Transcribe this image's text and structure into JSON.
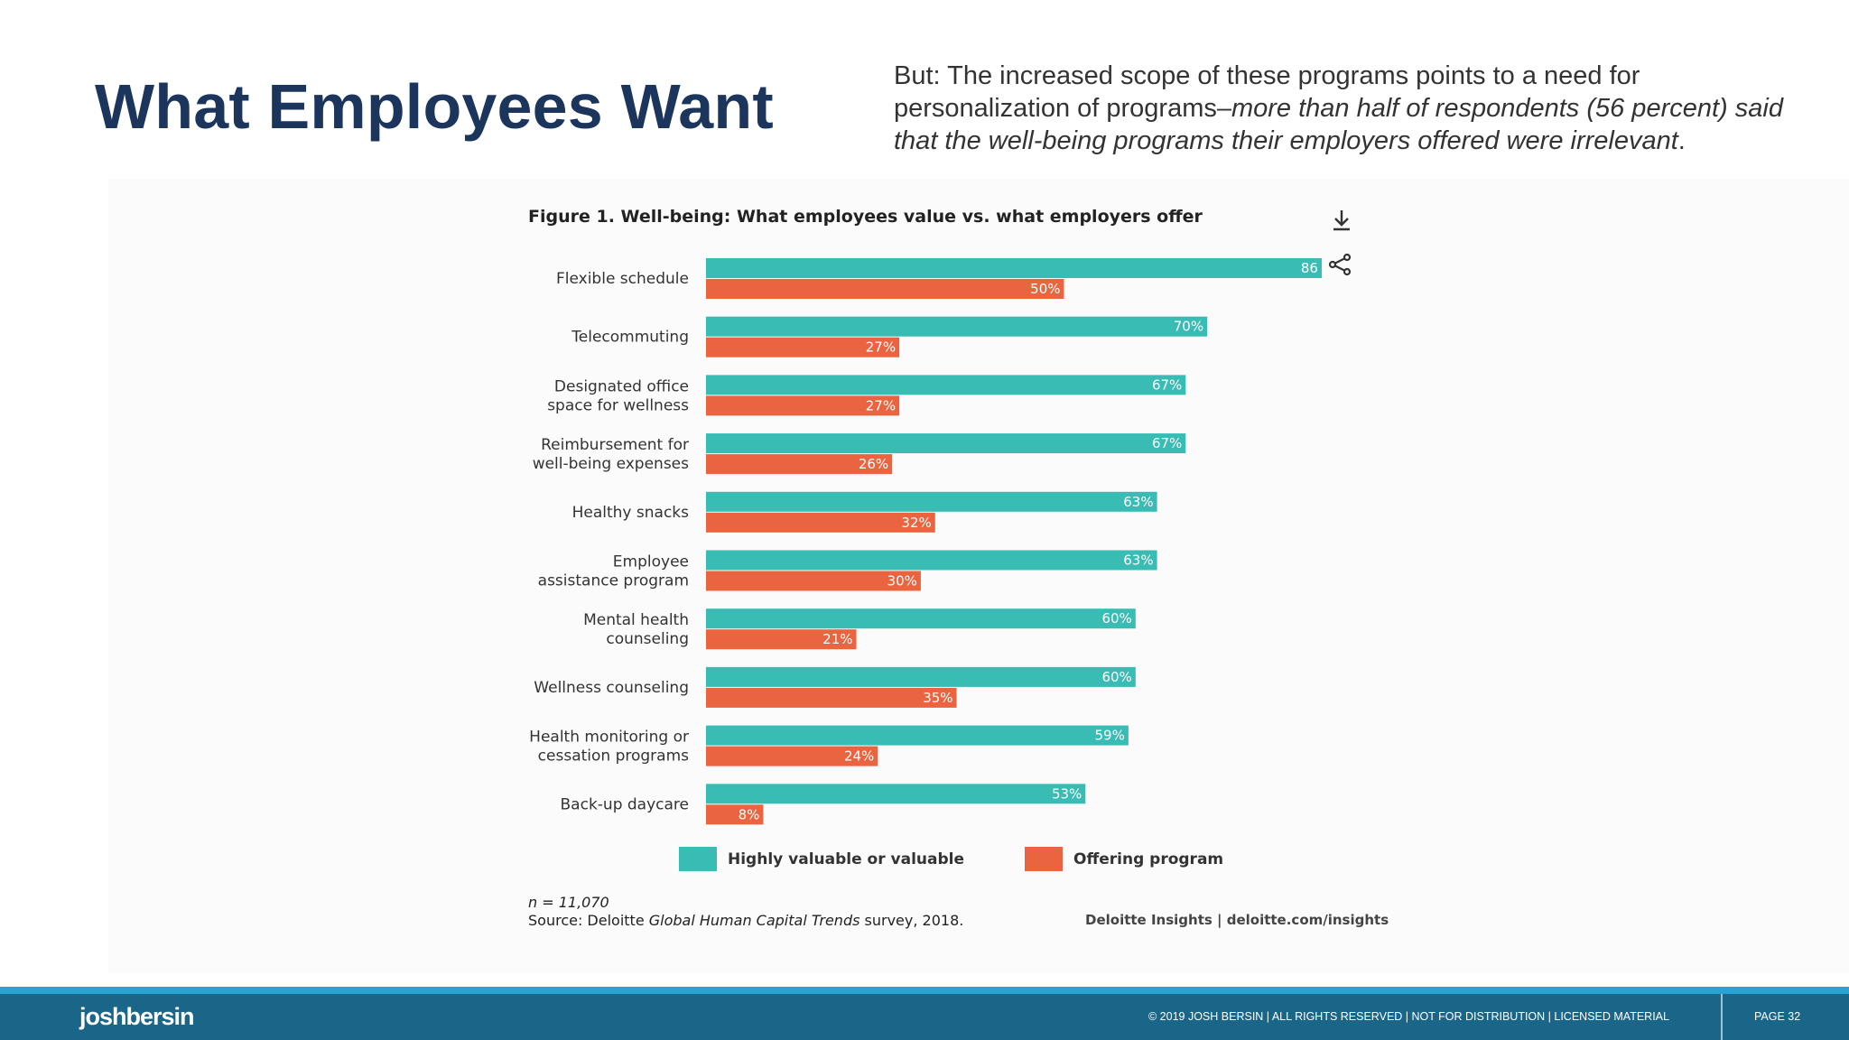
{
  "slide": {
    "title": "What Employees Want",
    "intro_plain": "But:  The increased scope of these programs points to a need for personalization of programs–",
    "intro_italic": "more than half of respondents (56 percent) said that the well-being programs their employers offered were irrelevant",
    "intro_end": "."
  },
  "figure": {
    "title": "Figure 1. Well-being: What employees value vs. what employers offer",
    "download_icon": "download-icon",
    "share_icon": "share-icon",
    "note_n": "n = 11,070",
    "source_prefix": "Source: Deloitte ",
    "source_italic": "Global Human Capital Trends",
    "source_suffix": " survey, 2018.",
    "credit": "Deloitte Insights | deloitte.com/insights"
  },
  "colors": {
    "valued": "#38bcb4",
    "offered": "#e9643f",
    "title_navy": "#1b355d",
    "footer": "#1a6688",
    "footer_stripe": "#29a3d4"
  },
  "chart_data": {
    "type": "bar",
    "orientation": "horizontal",
    "title": "Figure 1. Well-being: What employees value vs. what employers offer",
    "categories": [
      [
        "Flexible schedule"
      ],
      [
        "Telecommuting"
      ],
      [
        "Designated office",
        "space for wellness"
      ],
      [
        "Reimbursement for",
        "well-being expenses"
      ],
      [
        "Healthy snacks"
      ],
      [
        "Employee",
        "assistance program"
      ],
      [
        "Mental health",
        "counseling"
      ],
      [
        "Wellness counseling"
      ],
      [
        "Health monitoring or",
        "cessation programs"
      ],
      [
        "Back-up daycare"
      ]
    ],
    "series": [
      {
        "name": "Highly valuable or valuable",
        "values": [
          86,
          70,
          67,
          67,
          63,
          63,
          60,
          60,
          59,
          53
        ],
        "labels": [
          "86",
          "70%",
          "67%",
          "67%",
          "63%",
          "63%",
          "60%",
          "60%",
          "59%",
          "53%"
        ]
      },
      {
        "name": "Offering program",
        "values": [
          50,
          27,
          27,
          26,
          32,
          30,
          21,
          35,
          24,
          8
        ],
        "labels": [
          "50%",
          "27%",
          "27%",
          "26%",
          "32%",
          "30%",
          "21%",
          "35%",
          "24%",
          "8%"
        ]
      }
    ],
    "xlim": [
      0,
      100
    ],
    "unit": "%",
    "legend_position": "bottom",
    "grid": false
  },
  "footer": {
    "brand": "joshbersin",
    "legal": "© 2019 JOSH BERSIN | ALL RIGHTS RESERVED | NOT FOR DISTRIBUTION | LICENSED MATERIAL",
    "page": "PAGE  32"
  }
}
